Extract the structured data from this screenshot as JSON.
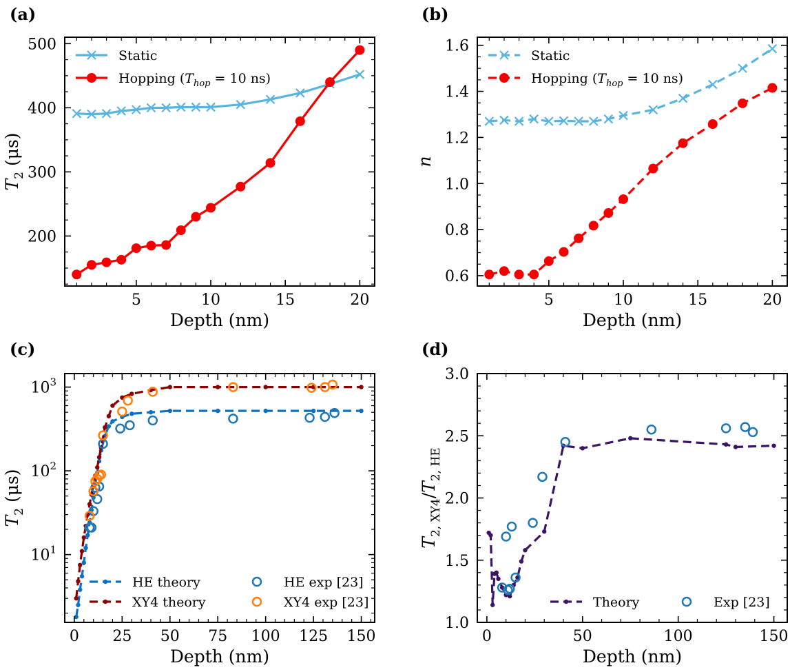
{
  "chart_data": [
    {
      "panel": "(a)",
      "type": "line",
      "xlabel": "Depth (nm)",
      "ylabel_main": "T",
      "ylabel_sub": "2",
      "ylabel_unit": "(μs)",
      "xlim": [
        0.2,
        21
      ],
      "ylim": [
        122,
        510
      ],
      "xticks": [
        5,
        10,
        15,
        20
      ],
      "yticks": [
        200,
        300,
        400,
        500
      ],
      "legend_loc": "top-left",
      "series": [
        {
          "name": "Static",
          "color": "#5ab4e0",
          "marker": "x",
          "dash": "solid",
          "x": [
            1,
            2,
            3,
            4,
            5,
            6,
            7,
            8,
            9,
            10,
            12,
            14,
            16,
            18,
            20
          ],
          "y": [
            391,
            390,
            391,
            395,
            397,
            400,
            400,
            401,
            401,
            401,
            405,
            413,
            423,
            437,
            452
          ]
        },
        {
          "name": "Hopping (T_hop = 10 ns)",
          "label_main": "Hopping (",
          "label_var": "T",
          "label_varsub": "hop",
          "label_rest": " = 10 ns)",
          "color": "#f40000",
          "marker": "o",
          "dash": "solid",
          "x": [
            1,
            2,
            3,
            4,
            5,
            6,
            7,
            8,
            9,
            10,
            12,
            14,
            16,
            18,
            20
          ],
          "y": [
            140,
            155,
            159,
            163,
            181,
            185,
            186,
            209,
            230,
            244,
            277,
            314,
            379,
            440,
            490
          ]
        }
      ]
    },
    {
      "panel": "(b)",
      "type": "line",
      "xlabel": "Depth (nm)",
      "ylabel_main": "n",
      "xlim": [
        0.2,
        21
      ],
      "ylim": [
        0.555,
        1.635
      ],
      "xticks": [
        5,
        10,
        15,
        20
      ],
      "yticks": [
        0.6,
        0.8,
        1.0,
        1.2,
        1.4,
        1.6
      ],
      "ytick_labels": [
        "0.6",
        "0.8",
        "1.0",
        "1.2",
        "1.4",
        "1.6"
      ],
      "legend_loc": "top-left",
      "series": [
        {
          "name": "Static",
          "color": "#5ab4e0",
          "marker": "x",
          "dash": "dashed",
          "x": [
            1,
            2,
            3,
            4,
            5,
            6,
            7,
            8,
            9,
            10,
            12,
            14,
            16,
            18,
            20
          ],
          "y": [
            1.27,
            1.275,
            1.27,
            1.28,
            1.27,
            1.272,
            1.27,
            1.27,
            1.28,
            1.295,
            1.32,
            1.37,
            1.43,
            1.5,
            1.585
          ]
        },
        {
          "name": "Hopping (T_hop = 10 ns)",
          "label_main": "Hopping (",
          "label_var": "T",
          "label_varsub": "hop",
          "label_rest": " = 10 ns)",
          "color": "#f40000",
          "marker": "o",
          "dash": "dashed",
          "x": [
            1,
            2,
            3,
            4,
            5,
            6,
            7,
            8,
            9,
            10,
            12,
            14,
            16,
            18,
            20
          ],
          "y": [
            0.605,
            0.62,
            0.605,
            0.605,
            0.663,
            0.703,
            0.762,
            0.817,
            0.872,
            0.932,
            1.065,
            1.175,
            1.258,
            1.348,
            1.415
          ]
        }
      ]
    },
    {
      "panel": "(c)",
      "type": "line",
      "yscale": "log",
      "xlabel": "Depth (nm)",
      "ylabel_main": "T",
      "ylabel_sub": "2",
      "ylabel_unit": "(μs)",
      "xlim": [
        -5,
        157
      ],
      "ylim": [
        1.55,
        1450
      ],
      "xticks": [
        0,
        25,
        50,
        75,
        100,
        125,
        150
      ],
      "yticks_log": [
        10,
        100,
        1000
      ],
      "ytick_labels": [
        {
          "base": "10",
          "exp": "1"
        },
        {
          "base": "10",
          "exp": "2"
        },
        {
          "base": "10",
          "exp": "3"
        }
      ],
      "legend_loc": "bottom",
      "series": [
        {
          "name": "HE theory",
          "color": "#0a72c0",
          "marker": "dot",
          "dash": "dashed",
          "x": [
            1,
            2,
            3,
            4,
            5,
            6,
            7,
            8,
            9,
            10,
            11,
            12,
            13,
            14,
            16,
            18,
            20,
            25,
            30,
            40,
            50,
            75,
            100,
            125,
            150
          ],
          "y": [
            1.8,
            2.5,
            3.8,
            5.5,
            8,
            12,
            17,
            24,
            34,
            48,
            70,
            95,
            130,
            175,
            260,
            340,
            390,
            440,
            480,
            500,
            520,
            520,
            520,
            520,
            520
          ]
        },
        {
          "name": "XY4 theory",
          "color": "#8b0000",
          "marker": "dot",
          "dash": "dashed",
          "x": [
            1,
            2,
            3,
            4,
            5,
            6,
            7,
            8,
            9,
            10,
            11,
            12,
            13,
            14,
            16,
            18,
            20,
            25,
            30,
            40,
            50,
            75,
            100,
            125,
            150
          ],
          "y": [
            3.0,
            4.8,
            7.5,
            11,
            16,
            22,
            30,
            40,
            52,
            68,
            88,
            110,
            145,
            190,
            330,
            450,
            600,
            750,
            830,
            920,
            1000,
            1000,
            1000,
            1000,
            1000
          ]
        },
        {
          "name": "HE exp [23]",
          "color": "#1f77b4",
          "marker": "open",
          "dash": "none",
          "x": [
            8,
            9,
            10,
            11,
            12,
            13,
            15,
            24,
            29,
            41,
            83,
            123,
            131,
            136
          ],
          "y": [
            21,
            21,
            33,
            63,
            46,
            65,
            210,
            320,
            350,
            400,
            420,
            430,
            440,
            490
          ]
        },
        {
          "name": "XY4 exp [23]",
          "color": "#ff7f0e",
          "marker": "open",
          "dash": "none",
          "x": [
            8,
            10,
            11,
            12,
            13,
            14,
            15,
            25,
            28,
            41,
            83,
            124,
            131,
            135
          ],
          "y": [
            29,
            57,
            75,
            80,
            88,
            90,
            265,
            510,
            690,
            880,
            1000,
            980,
            1000,
            1070
          ]
        }
      ]
    },
    {
      "panel": "(d)",
      "type": "line",
      "xlabel": "Depth (nm)",
      "ylabel_main": "T",
      "ylabel_sub": "2, XY4",
      "ylabel_sep": "/",
      "ylabel_main2": "T",
      "ylabel_sub2": "2, HE",
      "xlim": [
        -5,
        157
      ],
      "ylim": [
        1.0,
        3.0
      ],
      "xticks": [
        0,
        50,
        100,
        150
      ],
      "yticks": [
        1.0,
        1.5,
        2.0,
        2.5,
        3.0
      ],
      "ytick_labels": [
        "1.0",
        "1.5",
        "2.0",
        "2.5",
        "3.0"
      ],
      "legend_loc": "bottom-right",
      "series": [
        {
          "name": "Theory",
          "color": "#3b1466",
          "marker": "dot",
          "dash": "dashed",
          "x": [
            1,
            2,
            3,
            4,
            5,
            6,
            8,
            10,
            12,
            14,
            16,
            18,
            20,
            30,
            40,
            50,
            75,
            125,
            130,
            150
          ],
          "y": [
            1.72,
            1.7,
            1.14,
            1.39,
            1.4,
            1.35,
            1.28,
            1.22,
            1.21,
            1.3,
            1.36,
            1.49,
            1.58,
            1.73,
            2.42,
            2.4,
            2.48,
            2.43,
            2.41,
            2.42
          ]
        },
        {
          "name": "Exp [23]",
          "color": "#1f77b4",
          "marker": "open",
          "dash": "none",
          "x": [
            8,
            10,
            11,
            12,
            13,
            15,
            24,
            29,
            41,
            86,
            125,
            135,
            139
          ],
          "y": [
            1.28,
            1.69,
            1.26,
            1.27,
            1.77,
            1.36,
            1.8,
            2.17,
            2.45,
            2.55,
            2.56,
            2.57,
            2.53
          ]
        }
      ]
    }
  ]
}
